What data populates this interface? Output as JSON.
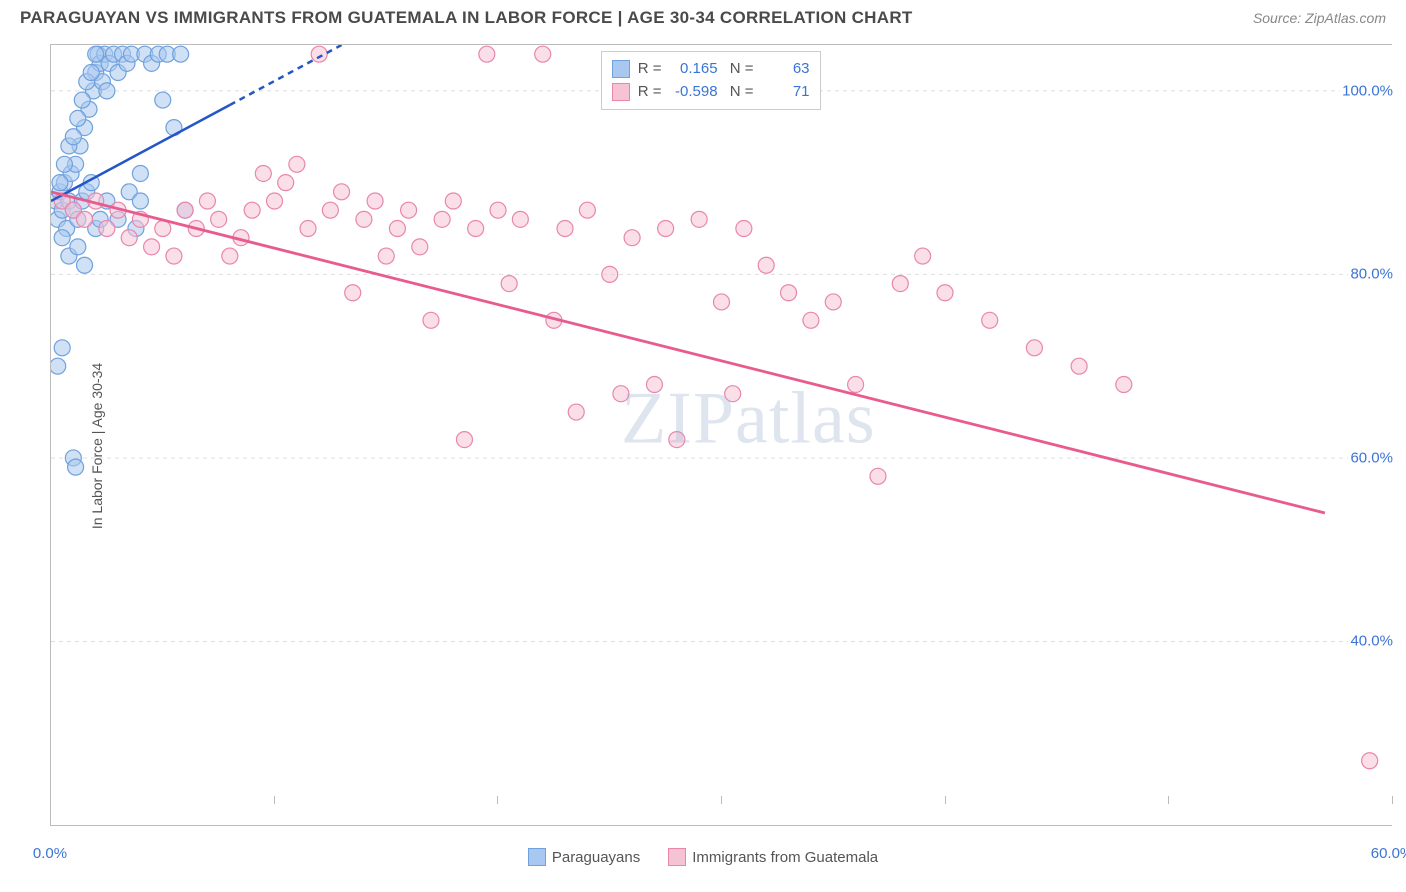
{
  "header": {
    "title": "PARAGUAYAN VS IMMIGRANTS FROM GUATEMALA IN LABOR FORCE | AGE 30-34 CORRELATION CHART",
    "source": "Source: ZipAtlas.com"
  },
  "chart": {
    "type": "scatter",
    "ylabel": "In Labor Force | Age 30-34",
    "xlim": [
      0,
      60
    ],
    "ylim": [
      20,
      105
    ],
    "x_ticks": [
      0,
      10,
      20,
      30,
      40,
      50,
      60
    ],
    "x_tick_labels": [
      "0.0%",
      "",
      "",
      "",
      "",
      "",
      "60.0%"
    ],
    "y_ticks": [
      40,
      60,
      80,
      100
    ],
    "y_tick_labels": [
      "40.0%",
      "60.0%",
      "80.0%",
      "100.0%"
    ],
    "grid_color": "#dddddd",
    "background_color": "#ffffff",
    "axis_color": "#bbbbbb",
    "tick_label_color": "#3b74d6",
    "marker_radius": 8,
    "marker_opacity": 0.55,
    "series": [
      {
        "name": "Paraguayans",
        "color_fill": "#a9c8ef",
        "color_stroke": "#6fa1de",
        "R": "0.165",
        "N": "63",
        "trend": {
          "x1": 0,
          "y1": 88,
          "x2": 13,
          "y2": 105,
          "solid_until_x": 8,
          "color": "#2456c7",
          "width": 2.5
        },
        "points": [
          [
            0.2,
            88
          ],
          [
            0.3,
            86
          ],
          [
            0.4,
            89
          ],
          [
            0.5,
            87
          ],
          [
            0.6,
            90
          ],
          [
            0.7,
            85
          ],
          [
            0.8,
            88
          ],
          [
            0.9,
            91
          ],
          [
            1.0,
            87
          ],
          [
            1.1,
            92
          ],
          [
            1.2,
            86
          ],
          [
            1.3,
            94
          ],
          [
            1.4,
            88
          ],
          [
            1.5,
            96
          ],
          [
            1.6,
            89
          ],
          [
            1.7,
            98
          ],
          [
            1.8,
            90
          ],
          [
            1.9,
            100
          ],
          [
            2.0,
            102
          ],
          [
            2.1,
            104
          ],
          [
            2.2,
            103
          ],
          [
            2.3,
            101
          ],
          [
            2.4,
            104
          ],
          [
            2.5,
            100
          ],
          [
            2.6,
            103
          ],
          [
            2.8,
            104
          ],
          [
            3.0,
            102
          ],
          [
            3.2,
            104
          ],
          [
            3.4,
            103
          ],
          [
            3.6,
            104
          ],
          [
            3.8,
            85
          ],
          [
            4.0,
            91
          ],
          [
            4.2,
            104
          ],
          [
            4.5,
            103
          ],
          [
            4.8,
            104
          ],
          [
            5.0,
            99
          ],
          [
            5.2,
            104
          ],
          [
            5.5,
            96
          ],
          [
            5.8,
            104
          ],
          [
            6.0,
            87
          ],
          [
            0.5,
            84
          ],
          [
            0.8,
            82
          ],
          [
            1.2,
            83
          ],
          [
            1.5,
            81
          ],
          [
            2.0,
            85
          ],
          [
            2.5,
            88
          ],
          [
            3.0,
            86
          ],
          [
            0.3,
            70
          ],
          [
            0.5,
            72
          ],
          [
            1.0,
            60
          ],
          [
            1.1,
            59
          ],
          [
            3.5,
            89
          ],
          [
            4.0,
            88
          ],
          [
            0.4,
            90
          ],
          [
            0.6,
            92
          ],
          [
            0.8,
            94
          ],
          [
            1.0,
            95
          ],
          [
            1.2,
            97
          ],
          [
            1.4,
            99
          ],
          [
            1.6,
            101
          ],
          [
            1.8,
            102
          ],
          [
            2.0,
            104
          ],
          [
            2.2,
            86
          ]
        ]
      },
      {
        "name": "Immigrants from Guatemala",
        "color_fill": "#f6c3d5",
        "color_stroke": "#e986ac",
        "R": "-0.598",
        "N": "71",
        "trend": {
          "x1": 0,
          "y1": 89,
          "x2": 57,
          "y2": 54,
          "color": "#e85b8f",
          "width": 2.8
        },
        "points": [
          [
            0.5,
            88
          ],
          [
            1.0,
            87
          ],
          [
            1.5,
            86
          ],
          [
            2.0,
            88
          ],
          [
            2.5,
            85
          ],
          [
            3.0,
            87
          ],
          [
            3.5,
            84
          ],
          [
            4.0,
            86
          ],
          [
            4.5,
            83
          ],
          [
            5.0,
            85
          ],
          [
            5.5,
            82
          ],
          [
            6.0,
            87
          ],
          [
            6.5,
            85
          ],
          [
            7.0,
            88
          ],
          [
            7.5,
            86
          ],
          [
            8.0,
            82
          ],
          [
            8.5,
            84
          ],
          [
            9.0,
            87
          ],
          [
            9.5,
            91
          ],
          [
            10.0,
            88
          ],
          [
            10.5,
            90
          ],
          [
            11.0,
            92
          ],
          [
            11.5,
            85
          ],
          [
            12.0,
            104
          ],
          [
            12.5,
            87
          ],
          [
            13.0,
            89
          ],
          [
            13.5,
            78
          ],
          [
            14.0,
            86
          ],
          [
            14.5,
            88
          ],
          [
            15.0,
            82
          ],
          [
            15.5,
            85
          ],
          [
            16.0,
            87
          ],
          [
            16.5,
            83
          ],
          [
            17.0,
            75
          ],
          [
            17.5,
            86
          ],
          [
            18.0,
            88
          ],
          [
            18.5,
            62
          ],
          [
            19.0,
            85
          ],
          [
            19.5,
            104
          ],
          [
            20.0,
            87
          ],
          [
            20.5,
            79
          ],
          [
            21.0,
            86
          ],
          [
            22.0,
            104
          ],
          [
            22.5,
            75
          ],
          [
            23.0,
            85
          ],
          [
            23.5,
            65
          ],
          [
            24.0,
            87
          ],
          [
            25.0,
            80
          ],
          [
            25.5,
            67
          ],
          [
            26.0,
            84
          ],
          [
            27.0,
            68
          ],
          [
            27.5,
            85
          ],
          [
            28.0,
            62
          ],
          [
            29.0,
            86
          ],
          [
            30.0,
            77
          ],
          [
            30.5,
            67
          ],
          [
            31.0,
            85
          ],
          [
            32.0,
            81
          ],
          [
            33.0,
            78
          ],
          [
            34.0,
            75
          ],
          [
            35.0,
            77
          ],
          [
            36.0,
            68
          ],
          [
            37.0,
            58
          ],
          [
            38.0,
            79
          ],
          [
            39.0,
            82
          ],
          [
            40.0,
            78
          ],
          [
            42.0,
            75
          ],
          [
            44.0,
            72
          ],
          [
            46.0,
            70
          ],
          [
            48.0,
            68
          ],
          [
            59.0,
            27
          ]
        ]
      }
    ],
    "watermark": "ZIPatlas",
    "legend": {
      "items": [
        {
          "label": "Paraguayans",
          "fill": "#a9c8ef",
          "stroke": "#6fa1de"
        },
        {
          "label": "Immigrants from Guatemala",
          "fill": "#f6c3d5",
          "stroke": "#e986ac"
        }
      ]
    }
  }
}
